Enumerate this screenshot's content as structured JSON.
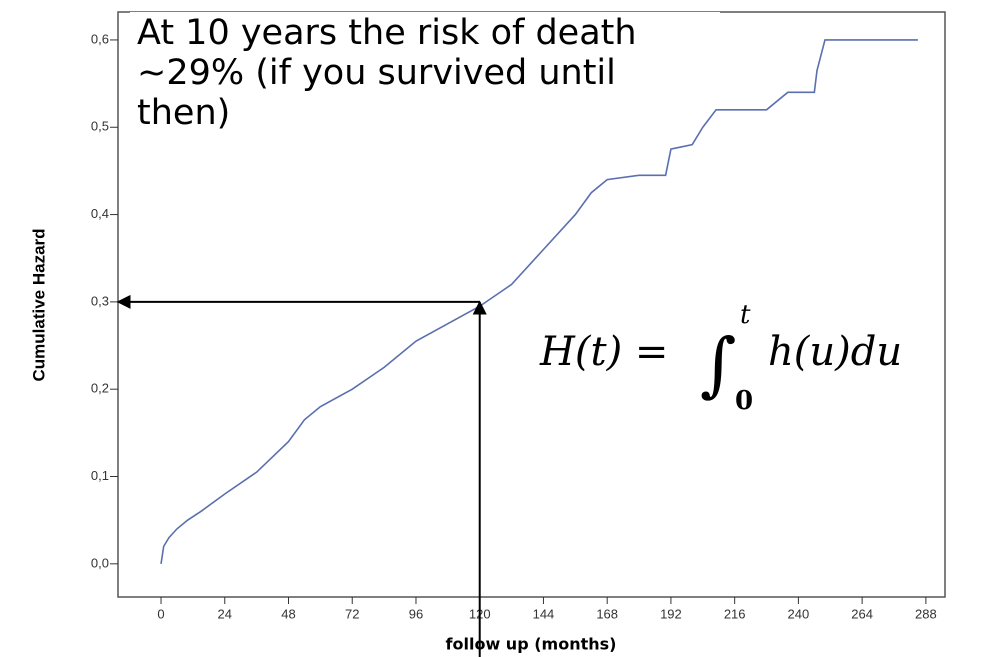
{
  "chart_data": {
    "type": "line",
    "x_label": "follow up (months)",
    "y_label": "Cumulative Hazard",
    "annotation": [
      "At 10 years the risk of death",
      "~29% (if you survived until",
      "then)"
    ],
    "formula": {
      "lhs": "H(t) =",
      "integral": "∫",
      "lower": "0",
      "upper": "t",
      "integrand": "h(u)du"
    },
    "highlight": {
      "x": 120,
      "y": 0.3
    },
    "xlim": [
      -16.2,
      295.2
    ],
    "ylim": [
      -0.038,
      0.632
    ],
    "xticks": [
      0,
      24,
      48,
      72,
      96,
      120,
      144,
      168,
      192,
      216,
      240,
      264,
      288
    ],
    "yticks": [
      {
        "value": 0,
        "label": "0,0"
      },
      {
        "value": 0.1,
        "label": "0,1"
      },
      {
        "value": 0.2,
        "label": "0,2"
      },
      {
        "value": 0.3,
        "label": "0,3"
      },
      {
        "value": 0.4,
        "label": "0,4"
      },
      {
        "value": 0.5,
        "label": "0,5"
      },
      {
        "value": 0.6,
        "label": "0,6"
      }
    ],
    "series": [
      {
        "color": "#5a6fb0",
        "x": [
          0,
          1,
          3,
          6,
          10,
          15,
          24,
          36,
          48,
          54,
          60,
          72,
          84,
          96,
          108,
          120,
          132,
          144,
          156,
          162,
          168,
          180,
          190,
          192,
          200,
          204,
          209,
          228,
          236,
          246,
          247,
          250,
          285
        ],
        "values": [
          0,
          0.02,
          0.03,
          0.04,
          0.05,
          0.06,
          0.08,
          0.105,
          0.14,
          0.165,
          0.18,
          0.2,
          0.225,
          0.255,
          0.275,
          0.295,
          0.32,
          0.36,
          0.4,
          0.425,
          0.44,
          0.445,
          0.445,
          0.475,
          0.48,
          0.5,
          0.52,
          0.52,
          0.54,
          0.54,
          0.565,
          0.6,
          0.6
        ]
      }
    ]
  }
}
